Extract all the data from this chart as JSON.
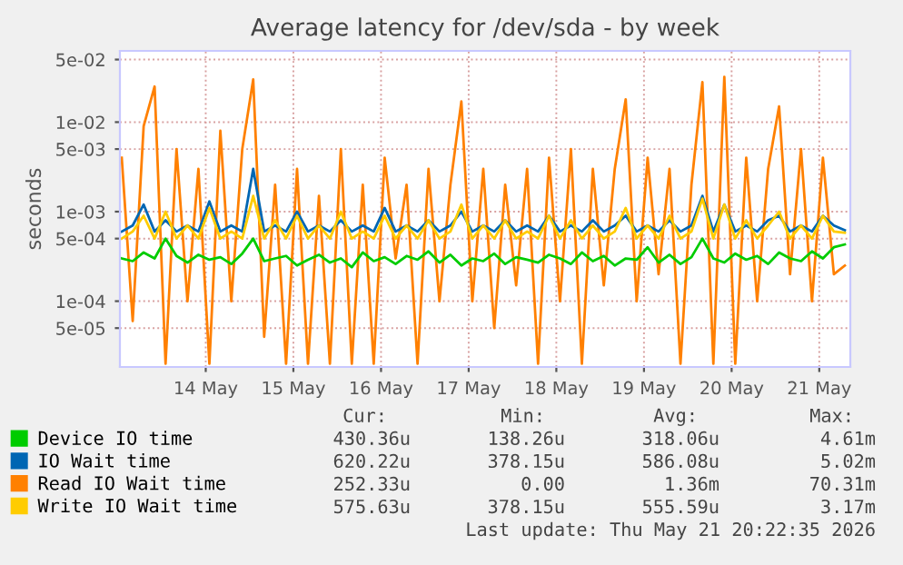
{
  "chart_data": {
    "type": "line",
    "title": "Average latency for /dev/sda - by week",
    "ylabel": "seconds",
    "log": "y",
    "ylim": [
      1.84e-05,
      0.0625
    ],
    "yticks": [
      {
        "value": 5e-05,
        "label": "5e-05"
      },
      {
        "value": 0.0001,
        "label": "1e-04"
      },
      {
        "value": 0.0005,
        "label": "5e-04"
      },
      {
        "value": 0.001,
        "label": "1e-03"
      },
      {
        "value": 0.005,
        "label": "5e-03"
      },
      {
        "value": 0.01,
        "label": "1e-02"
      },
      {
        "value": 0.05,
        "label": "5e-02"
      }
    ],
    "xlim": [
      "2026-05-13T12:30",
      "2026-05-21T20:30"
    ],
    "xticks": [
      {
        "value": "2026-05-14T12:00",
        "label": "14 May"
      },
      {
        "value": "2026-05-15T12:00",
        "label": "15 May"
      },
      {
        "value": "2026-05-16T12:00",
        "label": "16 May"
      },
      {
        "value": "2026-05-17T12:00",
        "label": "17 May"
      },
      {
        "value": "2026-05-18T12:00",
        "label": "18 May"
      },
      {
        "value": "2026-05-19T12:00",
        "label": "19 May"
      },
      {
        "value": "2026-05-20T12:00",
        "label": "20 May"
      },
      {
        "value": "2026-05-21T12:00",
        "label": "21 May"
      }
    ],
    "grid": true,
    "legend": "bottom",
    "marker": "none",
    "line_style": "solid",
    "x": [
      "2026-05-13T13:00",
      "2026-05-13T16:00",
      "2026-05-13T19:00",
      "2026-05-13T22:00",
      "2026-05-14T01:00",
      "2026-05-14T04:00",
      "2026-05-14T07:00",
      "2026-05-14T10:00",
      "2026-05-14T13:00",
      "2026-05-14T16:00",
      "2026-05-14T19:00",
      "2026-05-14T22:00",
      "2026-05-15T01:00",
      "2026-05-15T04:00",
      "2026-05-15T07:00",
      "2026-05-15T10:00",
      "2026-05-15T13:00",
      "2026-05-15T16:00",
      "2026-05-15T19:00",
      "2026-05-15T22:00",
      "2026-05-16T01:00",
      "2026-05-16T04:00",
      "2026-05-16T07:00",
      "2026-05-16T10:00",
      "2026-05-16T13:00",
      "2026-05-16T16:00",
      "2026-05-16T19:00",
      "2026-05-16T22:00",
      "2026-05-17T01:00",
      "2026-05-17T04:00",
      "2026-05-17T07:00",
      "2026-05-17T10:00",
      "2026-05-17T13:00",
      "2026-05-17T16:00",
      "2026-05-17T19:00",
      "2026-05-17T22:00",
      "2026-05-18T01:00",
      "2026-05-18T04:00",
      "2026-05-18T07:00",
      "2026-05-18T10:00",
      "2026-05-18T13:00",
      "2026-05-18T16:00",
      "2026-05-18T19:00",
      "2026-05-18T22:00",
      "2026-05-19T01:00",
      "2026-05-19T04:00",
      "2026-05-19T07:00",
      "2026-05-19T10:00",
      "2026-05-19T13:00",
      "2026-05-19T16:00",
      "2026-05-19T19:00",
      "2026-05-19T22:00",
      "2026-05-20T01:00",
      "2026-05-20T04:00",
      "2026-05-20T07:00",
      "2026-05-20T10:00",
      "2026-05-20T13:00",
      "2026-05-20T16:00",
      "2026-05-20T19:00",
      "2026-05-20T22:00",
      "2026-05-21T01:00",
      "2026-05-21T04:00",
      "2026-05-21T07:00",
      "2026-05-21T10:00",
      "2026-05-21T13:00",
      "2026-05-21T16:00",
      "2026-05-21T19:00"
    ],
    "series": [
      {
        "name": "Read IO Wait time",
        "color": "#ff8000",
        "values": [
          0.004,
          6e-05,
          0.009,
          0.025,
          2e-05,
          0.005,
          0.0001,
          0.003,
          2e-05,
          0.008,
          0.0001,
          0.005,
          0.03,
          4e-05,
          0.002,
          2e-05,
          0.003,
          2e-05,
          0.0015,
          2e-05,
          0.005,
          2e-05,
          0.002,
          2e-05,
          0.004,
          0.0003,
          0.002,
          2e-05,
          0.003,
          0.0001,
          0.002,
          0.017,
          0.0001,
          0.003,
          5e-05,
          0.002,
          0.00015,
          0.003,
          2e-05,
          0.004,
          0.0001,
          0.005,
          2e-05,
          0.003,
          0.00015,
          0.003,
          0.018,
          0.0001,
          0.004,
          0.0002,
          0.003,
          2e-05,
          0.002,
          0.028,
          2e-05,
          0.032,
          2e-05,
          0.004,
          0.0001,
          0.003,
          0.015,
          0.0002,
          0.005,
          0.0001,
          0.004,
          0.0002,
          0.00025
        ]
      },
      {
        "name": "IO Wait time",
        "color": "#0066b3",
        "values": [
          0.0006,
          0.0007,
          0.0012,
          0.0006,
          0.0008,
          0.0006,
          0.0007,
          0.0006,
          0.0013,
          0.0006,
          0.0007,
          0.0006,
          0.003,
          0.0006,
          0.0007,
          0.0006,
          0.001,
          0.0006,
          0.0007,
          0.0006,
          0.0008,
          0.0006,
          0.0007,
          0.0006,
          0.0011,
          0.0006,
          0.0007,
          0.0006,
          0.0008,
          0.0006,
          0.0007,
          0.001,
          0.0006,
          0.0007,
          0.0006,
          0.0008,
          0.0006,
          0.0007,
          0.0006,
          0.0009,
          0.0006,
          0.0007,
          0.0006,
          0.0008,
          0.0006,
          0.0007,
          0.0009,
          0.0006,
          0.0007,
          0.0006,
          0.0008,
          0.0006,
          0.0007,
          0.0015,
          0.0006,
          0.0012,
          0.0006,
          0.0007,
          0.0006,
          0.0008,
          0.0009,
          0.0006,
          0.0007,
          0.0006,
          0.0009,
          0.0007,
          0.00062
        ]
      },
      {
        "name": "Write IO Wait time",
        "color": "#ffcc00",
        "values": [
          0.0005,
          0.0006,
          0.0009,
          0.0005,
          0.001,
          0.0005,
          0.0007,
          0.0005,
          0.0011,
          0.0005,
          0.0006,
          0.0005,
          0.0015,
          0.0005,
          0.0008,
          0.0005,
          0.0009,
          0.0005,
          0.0007,
          0.0005,
          0.001,
          0.0005,
          0.0006,
          0.0005,
          0.0009,
          0.0005,
          0.0007,
          0.0005,
          0.0008,
          0.0005,
          0.0006,
          0.0012,
          0.0005,
          0.0007,
          0.0005,
          0.0008,
          0.0005,
          0.0006,
          0.0005,
          0.0009,
          0.0005,
          0.0008,
          0.0005,
          0.0007,
          0.0005,
          0.0006,
          0.0011,
          0.0005,
          0.0007,
          0.0005,
          0.0009,
          0.0005,
          0.0006,
          0.0014,
          0.0005,
          0.0012,
          0.0005,
          0.0008,
          0.0005,
          0.0007,
          0.001,
          0.0005,
          0.0007,
          0.0005,
          0.0009,
          0.0006,
          0.00058
        ]
      },
      {
        "name": "Device IO time",
        "color": "#00cc00",
        "values": [
          0.0003,
          0.00028,
          0.00035,
          0.0003,
          0.0005,
          0.00032,
          0.00027,
          0.00033,
          0.00029,
          0.00031,
          0.00026,
          0.00034,
          0.0005,
          0.00028,
          0.0003,
          0.00032,
          0.00025,
          0.00029,
          0.00033,
          0.00027,
          0.0003,
          0.00024,
          0.00035,
          0.00028,
          0.00031,
          0.00026,
          0.00032,
          0.00029,
          0.00036,
          0.00027,
          0.00033,
          0.00025,
          0.0003,
          0.00028,
          0.00034,
          0.00026,
          0.00031,
          0.00029,
          0.00027,
          0.00033,
          0.0003,
          0.00026,
          0.00035,
          0.00028,
          0.00032,
          0.00025,
          0.0003,
          0.00029,
          0.0004,
          0.00027,
          0.00033,
          0.00026,
          0.00031,
          0.0005,
          0.0003,
          0.00027,
          0.00034,
          0.00029,
          0.00032,
          0.00026,
          0.00035,
          0.0003,
          0.00028,
          0.00036,
          0.0003,
          0.0004,
          0.00043
        ]
      }
    ],
    "annotations": [
      "Cur:",
      "Min:",
      "Avg:",
      "Max:",
      "430.36u",
      "138.26u",
      "318.06u",
      "4.61m",
      "620.22u",
      "378.15u",
      "586.08u",
      "5.02m",
      "252.33u",
      "0.00",
      "1.36m",
      "70.31m",
      "575.63u",
      "378.15u",
      "555.59u",
      "3.17m",
      "Last update: Thu May 21 20:22:35 2026"
    ]
  }
}
